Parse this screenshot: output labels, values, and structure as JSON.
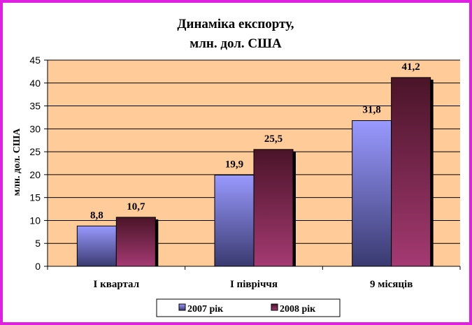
{
  "chart_data": {
    "type": "bar",
    "title_lines": [
      "Динаміка експорту,",
      "млн. дол. США"
    ],
    "xlabel": "",
    "ylabel": "млн. дол. США",
    "categories": [
      "I квартал",
      "I півріччя",
      "9 місяців"
    ],
    "series": [
      {
        "name": "2007 рік",
        "values": [
          8.8,
          19.9,
          31.8
        ],
        "labels": [
          "8,8",
          "19,9",
          "31,8"
        ],
        "color": "#9999ff"
      },
      {
        "name": "2008 рік",
        "values": [
          10.7,
          25.5,
          41.2
        ],
        "labels": [
          "10,7",
          "25,5",
          "41,2"
        ],
        "color": "#993366"
      }
    ],
    "ylim": [
      0,
      45
    ],
    "yticks": [
      "0",
      "5",
      "10",
      "15",
      "20",
      "25",
      "30",
      "35",
      "40",
      "45"
    ],
    "grid": true,
    "plot_background": "#ffcc99",
    "frame_border": "#e020e0",
    "legend_position": "bottom-center"
  }
}
